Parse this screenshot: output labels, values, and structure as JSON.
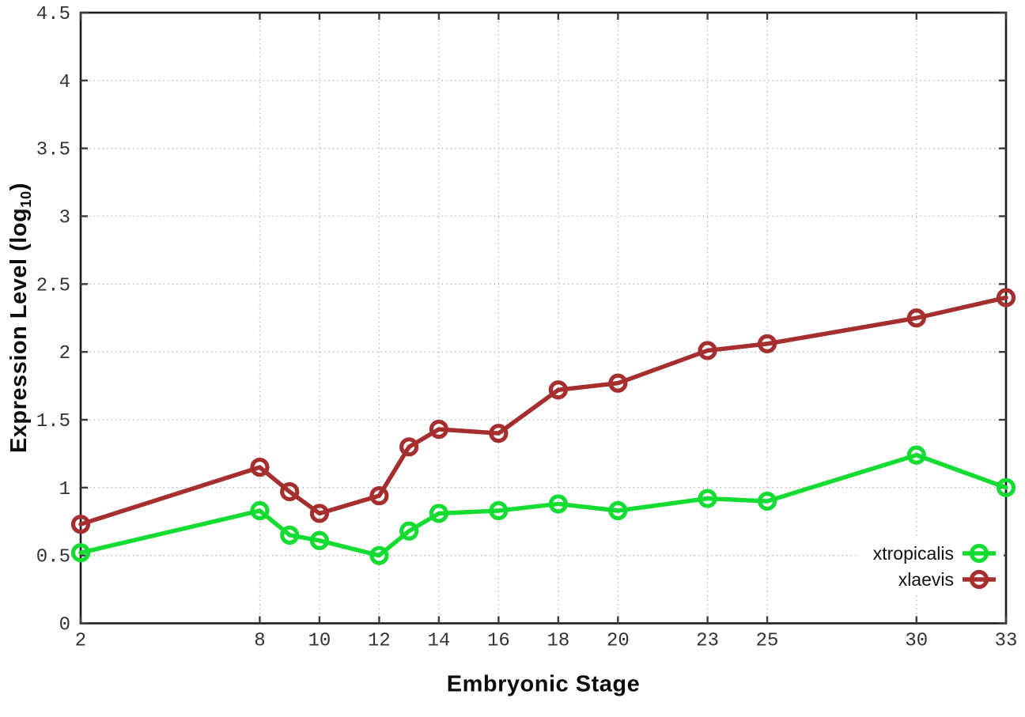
{
  "chart_data": {
    "type": "line",
    "title": "",
    "xlabel": "Embryonic Stage",
    "ylabel_parts": {
      "pre": "Expression Level (log",
      "sub": "10",
      "post": ")"
    },
    "x": [
      2,
      8,
      9,
      10,
      12,
      13,
      14,
      16,
      18,
      20,
      23,
      25,
      30,
      33
    ],
    "xticks": [
      2,
      8,
      10,
      12,
      14,
      16,
      18,
      20,
      23,
      25,
      30,
      33
    ],
    "yticks": [
      0,
      0.5,
      1,
      1.5,
      2,
      2.5,
      3,
      3.5,
      4,
      4.5
    ],
    "xlim": [
      2,
      33
    ],
    "ylim": [
      0,
      4.5
    ],
    "grid": true,
    "grid_style": "dotted",
    "legend_position": "bottom-right",
    "marker": "open-circle",
    "series": [
      {
        "name": "xtropicalis",
        "color": "#15dc32",
        "values": [
          0.52,
          0.83,
          0.65,
          0.61,
          0.5,
          0.68,
          0.81,
          0.83,
          0.88,
          0.83,
          0.92,
          0.9,
          1.24,
          1.0
        ]
      },
      {
        "name": "xlaevis",
        "color": "#a52e2e",
        "values": [
          0.73,
          1.15,
          0.97,
          0.81,
          0.94,
          1.3,
          1.43,
          1.4,
          1.72,
          1.77,
          2.01,
          2.06,
          2.25,
          2.4
        ]
      }
    ]
  },
  "colors": {
    "background": "#ffffff",
    "plot_border": "#1c1c1c",
    "gridline": "#b5b5b5",
    "tick_mark": "#3c3c3c",
    "tick_label": "#333333",
    "axis_title": "#0d0d0d",
    "legend_text": "#111111"
  }
}
